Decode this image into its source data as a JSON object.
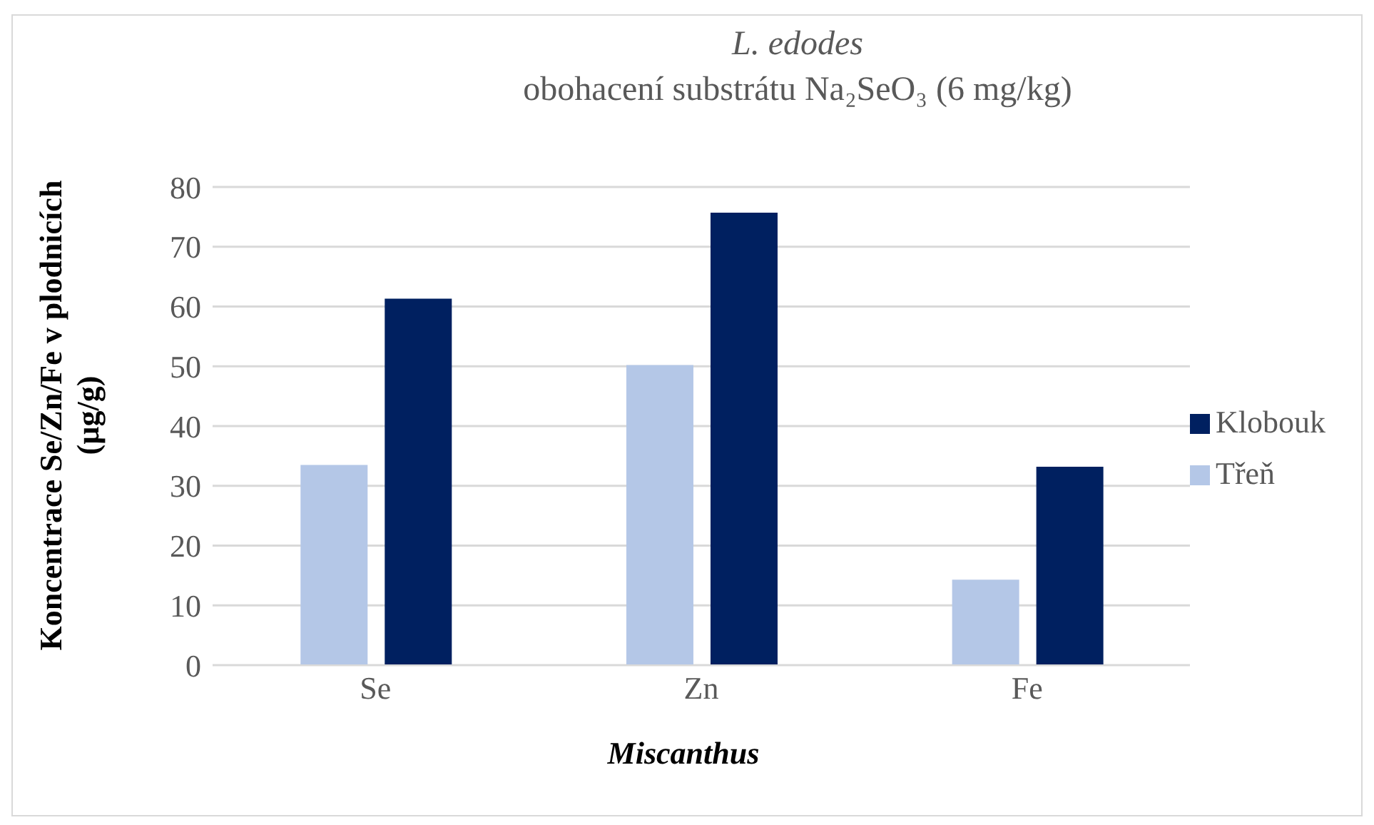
{
  "chart_data": {
    "type": "bar",
    "title": "L. edodes",
    "subtitle": "obohacení substrátu Na₂SeO₃ (6 mg/kg)",
    "xlabel": "Miscanthus",
    "ylabel": "Koncentrace Se/Zn/Fe v plodnicích (µg/g)",
    "categories": [
      "Se",
      "Zn",
      "Fe"
    ],
    "series": [
      {
        "name": "Třeň",
        "color": "#b4c7e7",
        "values": [
          33.5,
          50.2,
          14.3
        ]
      },
      {
        "name": "Klobouk",
        "color": "#002060",
        "values": [
          61.3,
          75.7,
          33.2
        ]
      }
    ],
    "ylim": [
      0,
      80
    ],
    "yticks": [
      0,
      10,
      20,
      30,
      40,
      50,
      60,
      70,
      80
    ],
    "grid": "y",
    "legend": "right"
  }
}
